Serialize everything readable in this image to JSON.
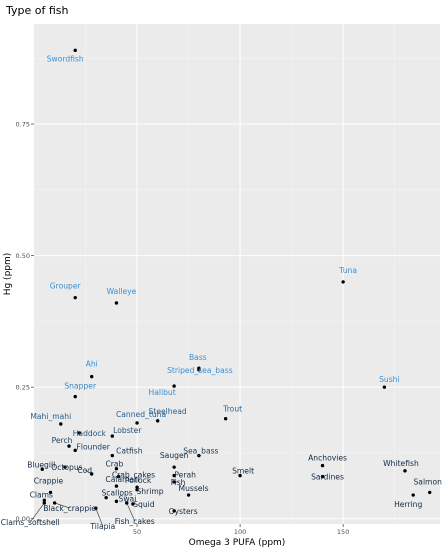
{
  "chart_data": {
    "type": "scatter",
    "title": "Type of fish",
    "xlabel": "Omega 3 PUFA (ppm)",
    "ylabel": "Hg (ppm)",
    "xlim": [
      0,
      197
    ],
    "ylim": [
      -0.01,
      0.94
    ],
    "x_ticks": [
      50,
      100,
      150
    ],
    "y_ticks": [
      0.0,
      0.25,
      0.5,
      0.75
    ],
    "x_tick_labels": [
      "50",
      "100",
      "150"
    ],
    "y_tick_labels": [
      "0.00",
      "0.25",
      "0.50",
      "0.75"
    ],
    "grid": true,
    "legend": "none",
    "colors": {
      "panel": "#ebebeb",
      "grid_major": "#ffffff",
      "grid_minor": "#f4f4f4",
      "point": "#000000",
      "label_high": "#3a8fd6",
      "label_low": "#132b43",
      "leader": "#333333"
    },
    "points": [
      {
        "name": "Swordfish",
        "x": 20,
        "y": 0.89
      },
      {
        "name": "Grouper",
        "x": 20,
        "y": 0.42
      },
      {
        "name": "Walleye",
        "x": 40,
        "y": 0.41
      },
      {
        "name": "Tuna",
        "x": 150,
        "y": 0.45
      },
      {
        "name": "Bass",
        "x": 80,
        "y": 0.286
      },
      {
        "name": "Striped_sea_bass",
        "x": 80,
        "y": 0.283
      },
      {
        "name": "Ahi",
        "x": 28,
        "y": 0.27
      },
      {
        "name": "Halibut",
        "x": 68,
        "y": 0.252
      },
      {
        "name": "Sushi",
        "x": 170,
        "y": 0.25
      },
      {
        "name": "Snapper",
        "x": 20,
        "y": 0.232
      },
      {
        "name": "Steelhead",
        "x": 60,
        "y": 0.186
      },
      {
        "name": "Canned_tuna",
        "x": 50,
        "y": 0.182
      },
      {
        "name": "Trout",
        "x": 93,
        "y": 0.19
      },
      {
        "name": "Mahi_mahi",
        "x": 13,
        "y": 0.18
      },
      {
        "name": "Haddock",
        "x": 22,
        "y": 0.163
      },
      {
        "name": "Lobster",
        "x": 38,
        "y": 0.157
      },
      {
        "name": "Perch",
        "x": 17,
        "y": 0.138
      },
      {
        "name": "Flounder",
        "x": 20,
        "y": 0.13
      },
      {
        "name": "Catfish",
        "x": 38,
        "y": 0.12
      },
      {
        "name": "Sea_bass",
        "x": 80,
        "y": 0.12
      },
      {
        "name": "Crab",
        "x": 40,
        "y": 0.095
      },
      {
        "name": "Saugen",
        "x": 68,
        "y": 0.098
      },
      {
        "name": "Bluegill",
        "x": 4,
        "y": 0.094
      },
      {
        "name": "Octopus",
        "x": 15,
        "y": 0.098
      },
      {
        "name": "Anchovies",
        "x": 140,
        "y": 0.101
      },
      {
        "name": "Whitefish",
        "x": 180,
        "y": 0.091
      },
      {
        "name": "Crab_cakes",
        "x": 41,
        "y": 0.08
      },
      {
        "name": "Perah",
        "x": 68,
        "y": 0.082
      },
      {
        "name": "Smelt",
        "x": 100,
        "y": 0.082
      },
      {
        "name": "Sardines",
        "x": 140,
        "y": 0.08
      },
      {
        "name": "Fish",
        "x": 68,
        "y": 0.07
      },
      {
        "name": "Crappie",
        "x": 8,
        "y": 0.05
      },
      {
        "name": "Salmon",
        "x": 192,
        "y": 0.05
      },
      {
        "name": "Calamari",
        "x": 40,
        "y": 0.062
      },
      {
        "name": "Pollock",
        "x": 50,
        "y": 0.06
      },
      {
        "name": "Shrimp",
        "x": 50,
        "y": 0.055
      },
      {
        "name": "Cod",
        "x": 28,
        "y": 0.085
      },
      {
        "name": "Mussels",
        "x": 75,
        "y": 0.045
      },
      {
        "name": "Herring",
        "x": 184,
        "y": 0.045
      },
      {
        "name": "Clams",
        "x": 5,
        "y": 0.035
      },
      {
        "name": "Scallops",
        "x": 35,
        "y": 0.04
      },
      {
        "name": "Swai",
        "x": 40,
        "y": 0.033
      },
      {
        "name": "Squid",
        "x": 48,
        "y": 0.028
      },
      {
        "name": "Oysters",
        "x": 68,
        "y": 0.015
      },
      {
        "name": "Black_crappie",
        "x": 10,
        "y": 0.03
      },
      {
        "name": "Clams_softshell",
        "x": 5,
        "y": 0.03
      },
      {
        "name": "Tilapia",
        "x": 30,
        "y": 0.02
      },
      {
        "name": "Fish_cakes",
        "x": 45,
        "y": 0.03
      }
    ]
  }
}
